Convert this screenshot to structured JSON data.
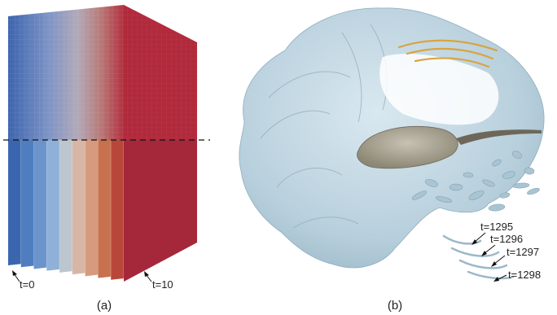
{
  "panel_a": {
    "caption": "(a)",
    "label_start": "t=0",
    "label_end": "t=10",
    "slice_colors": [
      "#3a66b0",
      "#4f7dc0",
      "#6b94cc",
      "#8fb0d8",
      "#bcc6cf",
      "#d8b6a6",
      "#d69a7e",
      "#c9704f",
      "#b8473a",
      "#a82a35"
    ]
  },
  "panel_b": {
    "caption": "(b)",
    "time_labels": [
      "t=1295",
      "t=1296",
      "t=1297",
      "t=1298"
    ],
    "surface_color": "#b9d2df",
    "core_color": "#a39d8c",
    "streak_color": "#d9a441"
  }
}
